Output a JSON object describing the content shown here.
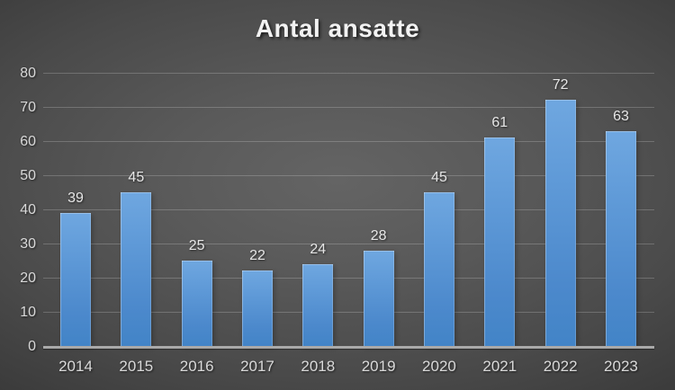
{
  "chart_data": {
    "type": "bar",
    "title": "Antal ansatte",
    "categories": [
      "2014",
      "2015",
      "2016",
      "2017",
      "2018",
      "2019",
      "2020",
      "2021",
      "2022",
      "2023"
    ],
    "values": [
      39,
      45,
      25,
      22,
      24,
      28,
      45,
      61,
      72,
      63
    ],
    "xlabel": "",
    "ylabel": "",
    "ylim": [
      0,
      80
    ],
    "ytick_step": 10,
    "grid": true,
    "legend_position": "none",
    "colors": {
      "bar_top": "#6fa7e0",
      "bar_bottom": "#4284c7",
      "background_center": "#5a5a5a",
      "background_edge": "#262626",
      "gridline": "rgba(255,255,255,0.20)",
      "axis_line": "#a9a9a9",
      "tick_label": "#d9d9d9",
      "data_label": "#e6e6e6",
      "title": "#f2f2f2"
    }
  }
}
